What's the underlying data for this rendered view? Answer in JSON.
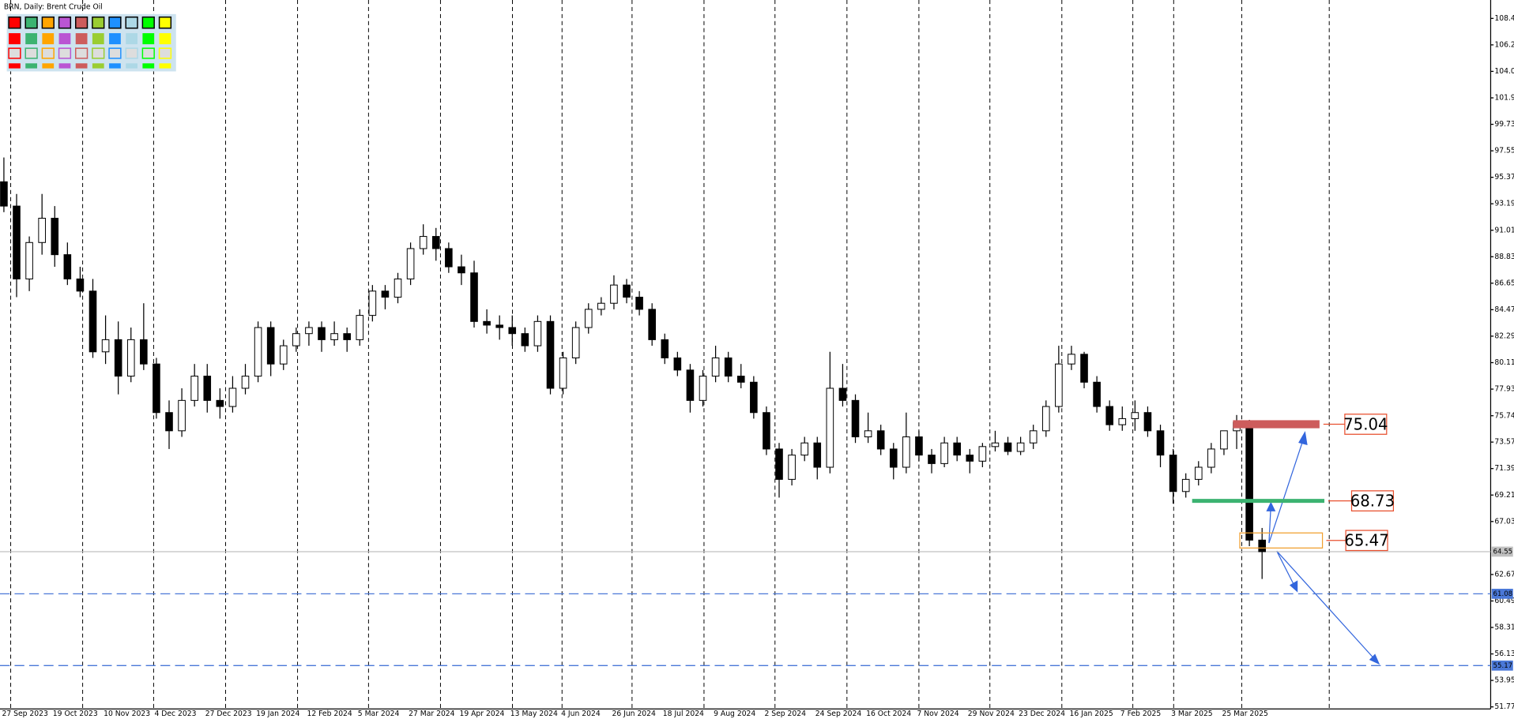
{
  "chart_data": {
    "type": "candlestick",
    "title": "BRN, Daily:  Brent Crude Oil",
    "categories": [
      "27 Sep 2023",
      null,
      null,
      null,
      "19 Oct 2023",
      null,
      null,
      null,
      "10 Nov 2023",
      null,
      null,
      null,
      "4 Dec 2023",
      null,
      null,
      null,
      "27 Dec 2023",
      null,
      null,
      null,
      "19 Jan 2024",
      null,
      null,
      null,
      "12 Feb 2024",
      null,
      null,
      null,
      "5 Mar 2024",
      null,
      null,
      null,
      "27 Mar 2024",
      null,
      null,
      null,
      "19 Apr 2024",
      null,
      null,
      null,
      "13 May 2024",
      null,
      null,
      null,
      "4 Jun 2024",
      null,
      null,
      null,
      "26 Jun 2024",
      null,
      null,
      null,
      "18 Jul 2024",
      null,
      null,
      null,
      "9 Aug 2024",
      null,
      null,
      null,
      "2 Sep 2024",
      null,
      null,
      null,
      "24 Sep 2024",
      null,
      null,
      null,
      "16 Oct 2024",
      null,
      null,
      null,
      "7 Nov 2024",
      null,
      null,
      null,
      "29 Nov 2024",
      null,
      null,
      null,
      "23 Dec 2024",
      null,
      null,
      null,
      "16 Jan 2025",
      null,
      null,
      null,
      "7 Feb 2025",
      null,
      null,
      null,
      "3 Mar 2025",
      null,
      null,
      null,
      "25 Mar 2025",
      null,
      null,
      null
    ],
    "ohlc": [
      [
        95,
        97,
        92.5,
        93
      ],
      [
        93,
        94,
        85.5,
        87
      ],
      [
        87,
        90.5,
        86,
        90
      ],
      [
        90,
        94,
        89,
        92
      ],
      [
        92,
        93,
        88,
        89
      ],
      [
        89,
        90,
        86.5,
        87
      ],
      [
        87,
        88,
        85.5,
        86
      ],
      [
        86,
        87,
        80.5,
        81
      ],
      [
        81,
        84,
        80,
        82
      ],
      [
        82,
        83.5,
        77.5,
        79
      ],
      [
        79,
        83,
        78.5,
        82
      ],
      [
        82,
        85,
        79.5,
        80
      ],
      [
        80,
        80.5,
        75.5,
        76
      ],
      [
        76,
        77,
        73,
        74.5
      ],
      [
        74.5,
        78,
        74,
        77
      ],
      [
        77,
        80,
        76.5,
        79
      ],
      [
        79,
        80,
        76,
        77
      ],
      [
        77,
        78,
        75.5,
        76.5
      ],
      [
        76.5,
        79,
        76,
        78
      ],
      [
        78,
        80,
        77.5,
        79
      ],
      [
        79,
        83.5,
        78.5,
        83
      ],
      [
        83,
        83.5,
        79,
        80
      ],
      [
        80,
        82,
        79.5,
        81.5
      ],
      [
        81.5,
        83,
        81,
        82.5
      ],
      [
        82.5,
        83.5,
        81.5,
        83
      ],
      [
        83,
        83.5,
        81,
        82
      ],
      [
        82,
        83.5,
        81.5,
        82.5
      ],
      [
        82.5,
        83,
        81,
        82
      ],
      [
        82,
        84.5,
        81.5,
        84
      ],
      [
        84,
        86.5,
        83.5,
        86
      ],
      [
        86,
        86.5,
        84.5,
        85.5
      ],
      [
        85.5,
        87.5,
        85,
        87
      ],
      [
        87,
        90,
        86.5,
        89.5
      ],
      [
        89.5,
        91.5,
        89,
        90.5
      ],
      [
        90.5,
        91.2,
        88.5,
        89.5
      ],
      [
        89.5,
        90,
        87.5,
        88
      ],
      [
        88,
        89,
        86.5,
        87.5
      ],
      [
        87.5,
        88.5,
        83,
        83.5
      ],
      [
        83.5,
        84.5,
        82.5,
        83.2
      ],
      [
        83.2,
        84,
        82,
        83
      ],
      [
        83,
        84,
        81.5,
        82.5
      ],
      [
        82.5,
        83,
        81,
        81.5
      ],
      [
        81.5,
        84,
        81,
        83.5
      ],
      [
        83.5,
        84,
        77.5,
        78
      ],
      [
        78,
        81,
        77.5,
        80.5
      ],
      [
        80.5,
        83.5,
        80,
        83
      ],
      [
        83,
        85,
        82.5,
        84.5
      ],
      [
        84.5,
        85.5,
        84,
        85
      ],
      [
        85,
        87.3,
        84.5,
        86.5
      ],
      [
        86.5,
        87,
        85,
        85.5
      ],
      [
        85.5,
        86,
        84,
        84.5
      ],
      [
        84.5,
        85,
        81.5,
        82
      ],
      [
        82,
        82.5,
        80,
        80.5
      ],
      [
        80.5,
        81,
        79,
        79.5
      ],
      [
        79.5,
        80,
        76,
        77
      ],
      [
        77,
        79.5,
        76.5,
        79
      ],
      [
        79,
        81.5,
        78.5,
        80.5
      ],
      [
        80.5,
        81,
        78.5,
        79
      ],
      [
        79,
        80,
        78,
        78.5
      ],
      [
        78.5,
        79,
        75.5,
        76
      ],
      [
        76,
        76.5,
        72.5,
        73
      ],
      [
        73,
        73.5,
        69,
        70.5
      ],
      [
        70.5,
        73,
        70,
        72.5
      ],
      [
        72.5,
        74,
        72,
        73.5
      ],
      [
        73.5,
        74,
        70.5,
        71.5
      ],
      [
        71.5,
        81,
        71,
        78
      ],
      [
        78,
        80,
        76.5,
        77
      ],
      [
        77,
        77.5,
        73.5,
        74
      ],
      [
        74,
        76,
        73.5,
        74.5
      ],
      [
        74.5,
        75,
        72.5,
        73
      ],
      [
        73,
        73.5,
        70.5,
        71.5
      ],
      [
        71.5,
        76,
        71,
        74
      ],
      [
        74,
        74.5,
        72,
        72.5
      ],
      [
        72.5,
        73,
        71,
        71.8
      ],
      [
        71.8,
        74,
        71.5,
        73.5
      ],
      [
        73.5,
        74,
        72,
        72.5
      ],
      [
        72.5,
        73,
        71,
        72
      ],
      [
        72,
        73.5,
        71.5,
        73.2
      ],
      [
        73.2,
        74.5,
        72.8,
        73.5
      ],
      [
        73.5,
        74,
        72.5,
        72.8
      ],
      [
        72.8,
        74,
        72.5,
        73.5
      ],
      [
        73.5,
        75,
        73,
        74.5
      ],
      [
        74.5,
        77,
        74,
        76.5
      ],
      [
        76.5,
        81.5,
        76,
        80
      ],
      [
        80,
        81.5,
        79.5,
        80.8
      ],
      [
        80.8,
        81,
        78,
        78.5
      ],
      [
        78.5,
        79,
        76,
        76.5
      ],
      [
        76.5,
        77,
        74.5,
        75
      ],
      [
        75,
        76.5,
        74.5,
        75.5
      ],
      [
        75.5,
        77,
        74.5,
        76
      ],
      [
        76,
        76.5,
        74,
        74.5
      ],
      [
        74.5,
        75,
        71.5,
        72.5
      ],
      [
        72.5,
        73,
        68.5,
        69.5
      ],
      [
        69.5,
        71,
        69,
        70.5
      ],
      [
        70.5,
        72,
        70,
        71.5
      ],
      [
        71.5,
        73.5,
        71,
        73
      ],
      [
        73,
        74.5,
        72.5,
        74.5
      ],
      [
        74.5,
        75.8,
        73,
        75.2
      ],
      [
        75.2,
        75.4,
        65,
        65.5
      ],
      [
        65.5,
        66.5,
        62.3,
        64.55
      ]
    ],
    "ylim": [
      51.6,
      109.8
    ],
    "yticks": [
      108.45,
      106.27,
      104.09,
      101.91,
      99.73,
      97.55,
      95.37,
      93.19,
      91.01,
      88.83,
      86.65,
      84.47,
      82.29,
      80.11,
      77.93,
      75.74,
      73.57,
      71.39,
      69.21,
      67.03,
      62.67,
      60.49,
      58.31,
      56.13,
      53.95,
      51.77
    ],
    "levels": [
      {
        "value": 75.04,
        "color": "#cd5c5c",
        "kind": "zone"
      },
      {
        "value": 68.73,
        "color": "#3cb371",
        "kind": "line"
      },
      {
        "value": 65.47,
        "color": "#f0a030",
        "kind": "box"
      }
    ],
    "price_lines": [
      {
        "value": 64.55,
        "color": "#c0c0c0",
        "style": "solid"
      },
      {
        "value": 61.08,
        "color": "#4a78d8",
        "style": "dashed"
      },
      {
        "value": 55.17,
        "color": "#4a78d8",
        "style": "dashed"
      }
    ]
  }
}
